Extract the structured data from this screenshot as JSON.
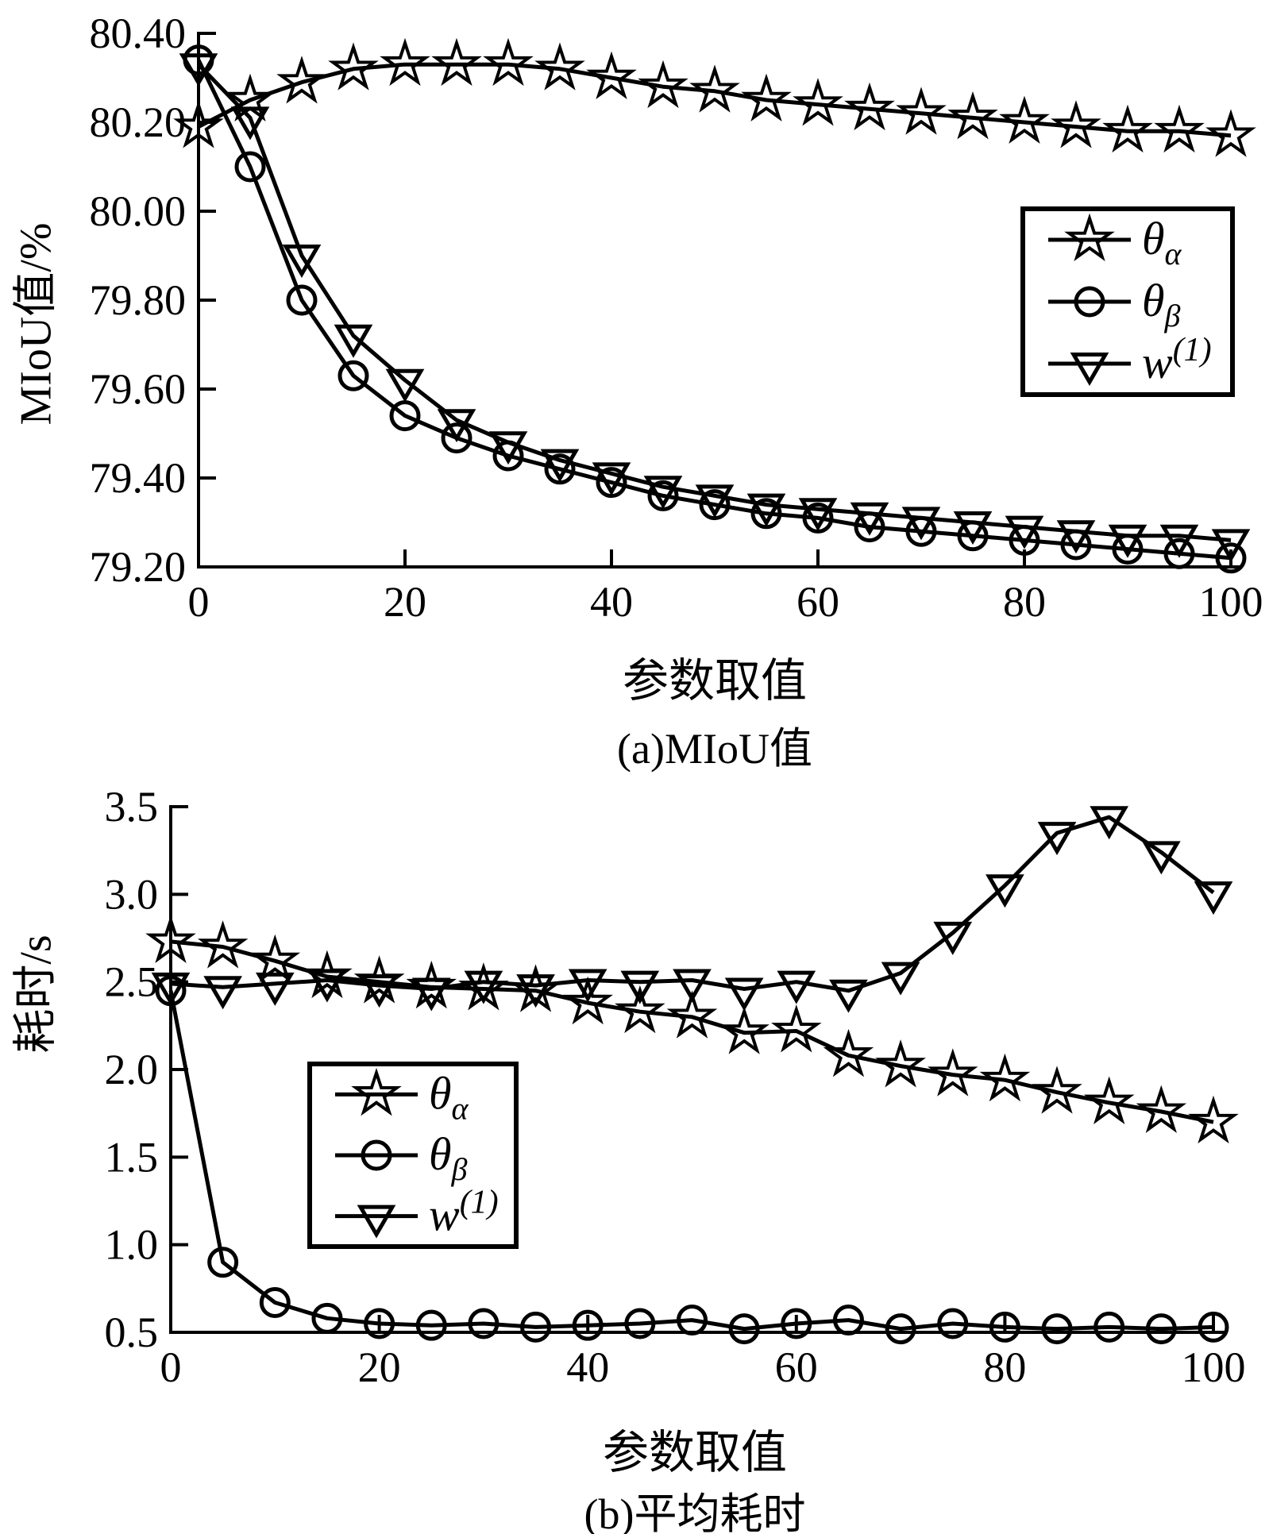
{
  "page": {
    "background": "#ffffff",
    "line_color": "#000000"
  },
  "chart_data": [
    {
      "type": "line",
      "panel": "a",
      "title": "(a)MIoU值",
      "xlabel": "参数取值",
      "ylabel": "MIoU值/%",
      "x_range": [
        0,
        100
      ],
      "y_range": [
        79.2,
        80.4
      ],
      "x_ticks": [
        0,
        20,
        40,
        60,
        80,
        100
      ],
      "y_ticks": [
        79.2,
        79.4,
        79.6,
        79.8,
        80.0,
        80.2,
        80.4
      ],
      "y_tick_labels": [
        "79.20",
        "79.40",
        "79.60",
        "79.80",
        "80.00",
        "80.20",
        "80.40"
      ],
      "grid": false,
      "legend_position": "upper-right-inside",
      "x": [
        0,
        5,
        10,
        15,
        20,
        25,
        30,
        35,
        40,
        45,
        50,
        55,
        60,
        65,
        70,
        75,
        80,
        85,
        90,
        95,
        100
      ],
      "series": [
        {
          "name": "theta-alpha",
          "label_base": "θ",
          "label_sub": "α",
          "label_sup": "",
          "marker": "star",
          "values": [
            80.19,
            80.25,
            80.29,
            80.32,
            80.33,
            80.33,
            80.33,
            80.32,
            80.3,
            80.28,
            80.27,
            80.25,
            80.24,
            80.23,
            80.22,
            80.21,
            80.2,
            80.19,
            80.18,
            80.18,
            80.17
          ]
        },
        {
          "name": "theta-beta",
          "label_base": "θ",
          "label_sub": "β",
          "label_sup": "",
          "marker": "circle",
          "values": [
            80.34,
            80.1,
            79.8,
            79.63,
            79.54,
            79.49,
            79.45,
            79.42,
            79.39,
            79.36,
            79.34,
            79.32,
            79.31,
            79.29,
            79.28,
            79.27,
            79.26,
            79.25,
            79.24,
            79.23,
            79.22
          ]
        },
        {
          "name": "w1",
          "label_base": "w",
          "label_sub": "",
          "label_sup": "(1)",
          "marker": "triangle-down",
          "values": [
            80.33,
            80.21,
            79.9,
            79.72,
            79.62,
            79.53,
            79.48,
            79.44,
            79.41,
            79.38,
            79.36,
            79.34,
            79.33,
            79.32,
            79.31,
            79.3,
            79.29,
            79.28,
            79.27,
            79.27,
            79.26
          ]
        }
      ]
    },
    {
      "type": "line",
      "panel": "b",
      "title": "(b)平均耗时",
      "xlabel": "参数取值",
      "ylabel": "耗时/s",
      "x_range": [
        0,
        100
      ],
      "y_range": [
        0.5,
        3.5
      ],
      "x_ticks": [
        0,
        20,
        40,
        60,
        80,
        100
      ],
      "y_ticks": [
        0.5,
        1.0,
        1.5,
        2.0,
        2.5,
        3.0,
        3.5
      ],
      "y_tick_labels": [
        "0.5",
        "1.0",
        "1.5",
        "2.0",
        "2.5",
        "3.0",
        "3.5"
      ],
      "grid": false,
      "legend_position": "lower-left-inside",
      "x": [
        0,
        5,
        10,
        15,
        20,
        25,
        30,
        35,
        40,
        45,
        50,
        55,
        60,
        65,
        70,
        75,
        80,
        85,
        90,
        95,
        100
      ],
      "series": [
        {
          "name": "theta-alpha",
          "label_base": "θ",
          "label_sub": "α",
          "label_sup": "",
          "marker": "star",
          "values": [
            2.73,
            2.7,
            2.62,
            2.53,
            2.5,
            2.47,
            2.46,
            2.45,
            2.38,
            2.33,
            2.3,
            2.21,
            2.22,
            2.08,
            2.02,
            1.97,
            1.94,
            1.87,
            1.81,
            1.76,
            1.7
          ]
        },
        {
          "name": "theta-beta",
          "label_base": "θ",
          "label_sub": "β",
          "label_sup": "",
          "marker": "circle",
          "values": [
            2.45,
            0.9,
            0.67,
            0.58,
            0.55,
            0.54,
            0.55,
            0.53,
            0.54,
            0.55,
            0.57,
            0.52,
            0.55,
            0.57,
            0.52,
            0.55,
            0.53,
            0.52,
            0.53,
            0.52,
            0.53
          ]
        },
        {
          "name": "w1",
          "label_base": "w",
          "label_sub": "",
          "label_sup": "(1)",
          "marker": "triangle-down",
          "values": [
            2.49,
            2.47,
            2.49,
            2.51,
            2.48,
            2.46,
            2.5,
            2.48,
            2.51,
            2.5,
            2.51,
            2.46,
            2.5,
            2.45,
            2.55,
            2.78,
            3.05,
            3.35,
            3.44,
            3.24,
            3.01
          ]
        }
      ]
    }
  ]
}
